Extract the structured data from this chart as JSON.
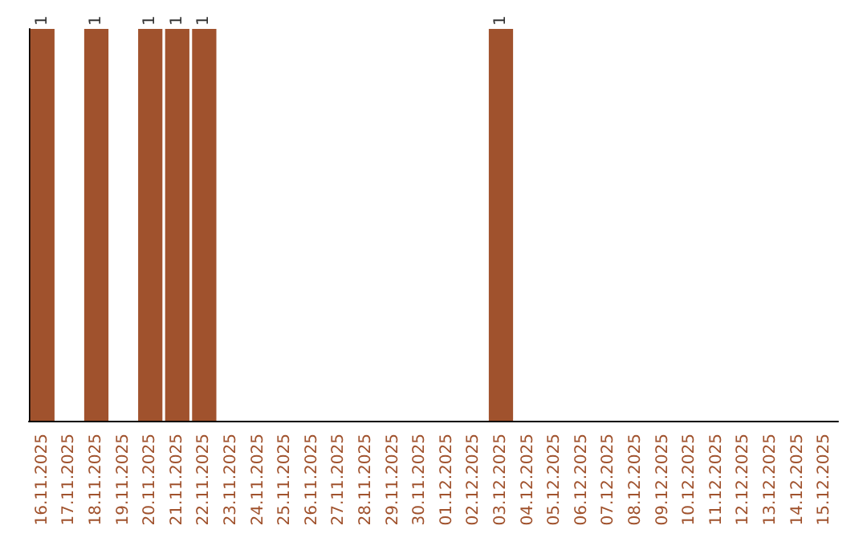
{
  "chart_data": {
    "type": "bar",
    "categories": [
      "16.11.2025",
      "17.11.2025",
      "18.11.2025",
      "19.11.2025",
      "20.11.2025",
      "21.11.2025",
      "22.11.2025",
      "23.11.2025",
      "24.11.2025",
      "25.11.2025",
      "26.11.2025",
      "27.11.2025",
      "28.11.2025",
      "29.11.2025",
      "30.11.2025",
      "01.12.2025",
      "02.12.2025",
      "03.12.2025",
      "04.12.2025",
      "05.12.2025",
      "06.12.2025",
      "07.12.2025",
      "08.12.2025",
      "09.12.2025",
      "10.12.2025",
      "11.12.2025",
      "12.12.2025",
      "13.12.2025",
      "14.12.2025",
      "15.12.2025"
    ],
    "values": [
      1,
      0,
      1,
      0,
      1,
      1,
      1,
      0,
      0,
      0,
      0,
      0,
      0,
      0,
      0,
      0,
      0,
      1,
      0,
      0,
      0,
      0,
      0,
      0,
      0,
      0,
      0,
      0,
      0,
      0
    ],
    "value_labels": [
      "1",
      null,
      "1",
      null,
      "1",
      "1",
      "1",
      null,
      null,
      null,
      null,
      null,
      null,
      null,
      null,
      null,
      null,
      "1",
      null,
      null,
      null,
      null,
      null,
      null,
      null,
      null,
      null,
      null,
      null,
      null
    ],
    "color": "#a0522d",
    "tick_labels": "x"
  }
}
